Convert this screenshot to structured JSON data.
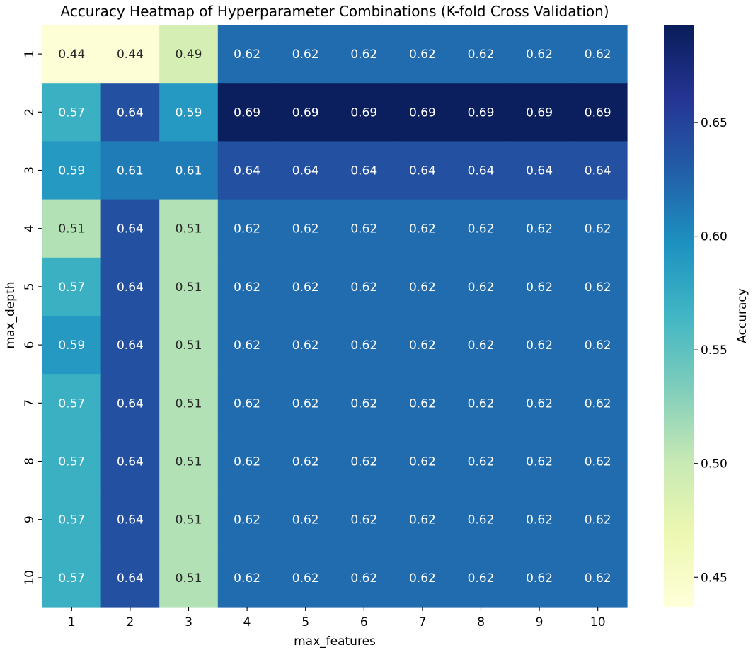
{
  "chart_data": {
    "type": "heatmap",
    "title": "Accuracy Heatmap of Hyperparameter Combinations (K-fold Cross Validation)",
    "xlabel": "max_features",
    "ylabel": "max_depth",
    "x_categories": [
      "1",
      "2",
      "3",
      "4",
      "5",
      "6",
      "7",
      "8",
      "9",
      "10"
    ],
    "y_categories": [
      "1",
      "2",
      "3",
      "4",
      "5",
      "6",
      "7",
      "8",
      "9",
      "10"
    ],
    "values": [
      [
        0.44,
        0.44,
        0.49,
        0.62,
        0.62,
        0.62,
        0.62,
        0.62,
        0.62,
        0.62
      ],
      [
        0.57,
        0.64,
        0.59,
        0.69,
        0.69,
        0.69,
        0.69,
        0.69,
        0.69,
        0.69
      ],
      [
        0.59,
        0.61,
        0.61,
        0.64,
        0.64,
        0.64,
        0.64,
        0.64,
        0.64,
        0.64
      ],
      [
        0.51,
        0.64,
        0.51,
        0.62,
        0.62,
        0.62,
        0.62,
        0.62,
        0.62,
        0.62
      ],
      [
        0.57,
        0.64,
        0.51,
        0.62,
        0.62,
        0.62,
        0.62,
        0.62,
        0.62,
        0.62
      ],
      [
        0.59,
        0.64,
        0.51,
        0.62,
        0.62,
        0.62,
        0.62,
        0.62,
        0.62,
        0.62
      ],
      [
        0.57,
        0.64,
        0.51,
        0.62,
        0.62,
        0.62,
        0.62,
        0.62,
        0.62,
        0.62
      ],
      [
        0.57,
        0.64,
        0.51,
        0.62,
        0.62,
        0.62,
        0.62,
        0.62,
        0.62,
        0.62
      ],
      [
        0.57,
        0.64,
        0.51,
        0.62,
        0.62,
        0.62,
        0.62,
        0.62,
        0.62,
        0.62
      ],
      [
        0.57,
        0.64,
        0.51,
        0.62,
        0.62,
        0.62,
        0.62,
        0.62,
        0.62,
        0.62
      ]
    ],
    "colormap": "YlGnBu",
    "colorbar": {
      "label": "Accuracy",
      "range": [
        0.437,
        0.693
      ],
      "ticks": [
        0.45,
        0.5,
        0.55,
        0.6,
        0.65
      ],
      "tick_labels": [
        "0.45",
        "0.50",
        "0.55",
        "0.60",
        "0.65"
      ]
    },
    "legend_position": "right",
    "grid": false
  }
}
